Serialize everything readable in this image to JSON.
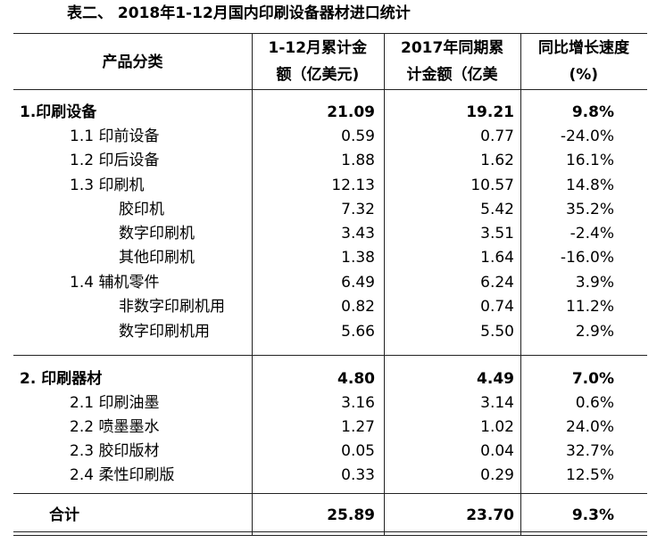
{
  "title": "表二、 2018年1-12月国内印刷设备器材进口统计",
  "table": {
    "header": [
      [
        "产品分类"
      ],
      [
        "1-12月累计金",
        "额（亿美元)"
      ],
      [
        "2017年同期累",
        "计金额（亿美"
      ],
      [
        "同比增长速度",
        "(%)"
      ]
    ],
    "rows": [
      [
        "1.印刷设备",
        "21.09",
        "19.21",
        "9.8%"
      ],
      [
        "1.1 印前设备",
        "0.59",
        "0.77",
        "-24.0%"
      ],
      [
        "1.2 印后设备",
        "1.88",
        "1.62",
        "16.1%"
      ],
      [
        "1.3 印刷机",
        "12.13",
        "10.57",
        "14.8%"
      ],
      [
        "胶印机",
        "7.32",
        "5.42",
        "35.2%"
      ],
      [
        "数字印刷机",
        "3.43",
        "3.51",
        "-2.4%"
      ],
      [
        "其他印刷机",
        "1.38",
        "1.64",
        "-16.0%"
      ],
      [
        "1.4  辅机零件",
        "6.49",
        "6.24",
        "3.9%"
      ],
      [
        "非数字印刷机用",
        "0.82",
        "0.74",
        "11.2%"
      ],
      [
        "数字印刷机用",
        "5.66",
        "5.50",
        "2.9%"
      ],
      [
        "2. 印刷器材",
        "4.80",
        "4.49",
        "7.0%"
      ],
      [
        "2.1 印刷油墨",
        "3.16",
        "3.14",
        "0.6%"
      ],
      [
        "2.2 喷墨墨水",
        "1.27",
        "1.02",
        "24.0%"
      ],
      [
        "2.3 胶印版材",
        "0.05",
        "0.04",
        "32.7%"
      ],
      [
        "2.4 柔性印刷版",
        "0.33",
        "0.29",
        "12.5%"
      ],
      [
        "合计",
        "25.89",
        "23.70",
        "9.3%"
      ]
    ]
  }
}
